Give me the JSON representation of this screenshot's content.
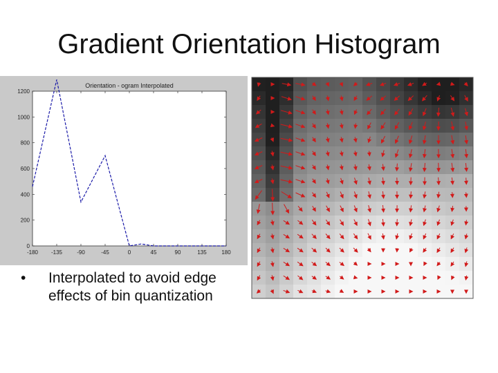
{
  "slide": {
    "title": "Gradient Orientation Histogram",
    "bullet_marker": "•",
    "bullet_text": "Interpolated to avoid edge effects of bin quantization"
  },
  "chart_data": [
    {
      "type": "line",
      "title": "Orientation - ogram Interpolated",
      "xlabel": "",
      "ylabel": "",
      "xlim": [
        -180,
        180
      ],
      "ylim": [
        0,
        1200
      ],
      "x_ticks": [
        -180,
        -135,
        -90,
        -45,
        0,
        45,
        90,
        135,
        180
      ],
      "x_tick_labels": [
        "-180",
        "-135",
        "-90",
        "-45",
        "0",
        "45",
        "90",
        "135",
        "180"
      ],
      "y_ticks": [
        0,
        200,
        400,
        600,
        800,
        1000,
        1200
      ],
      "y_tick_labels": [
        "0",
        "200",
        "400",
        "600",
        "800",
        "1000",
        "1200"
      ],
      "grid": false,
      "line_style": "dashed",
      "line_color": "#1a1aa8",
      "series": [
        {
          "x": [
            -180,
            -135,
            -90,
            -45,
            0,
            22,
            45,
            90,
            135,
            180
          ],
          "values": [
            460,
            1290,
            340,
            700,
            0,
            15,
            0,
            0,
            0,
            0
          ]
        }
      ]
    },
    {
      "type": "heatmap",
      "title": "",
      "description_kind": "gradient orientation field",
      "arrow_color": "#d11a1a",
      "cmap": "grayscale"
    }
  ]
}
